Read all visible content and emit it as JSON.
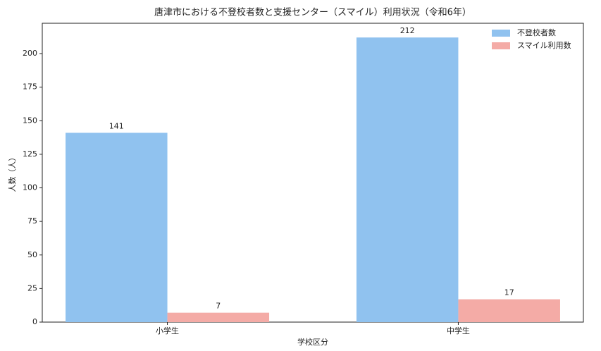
{
  "chart_data": {
    "type": "bar",
    "title": "唐津市における不登校者数と支援センター（スマイル）利用状況（令和6年）",
    "x_label": "学校区分",
    "y_label": "人数（人）",
    "categories": [
      "小学生",
      "中学生"
    ],
    "series": [
      {
        "name": "不登校者数",
        "color": "#90c2ef",
        "values": [
          141,
          212
        ]
      },
      {
        "name": "スマイル利用数",
        "color": "#f4aba6",
        "values": [
          7,
          17
        ]
      }
    ],
    "ylim": [
      0,
      222.6
    ],
    "yticks": [
      0,
      25,
      50,
      75,
      100,
      125,
      150,
      175,
      200
    ],
    "legend": "upper right",
    "show_values": true
  }
}
